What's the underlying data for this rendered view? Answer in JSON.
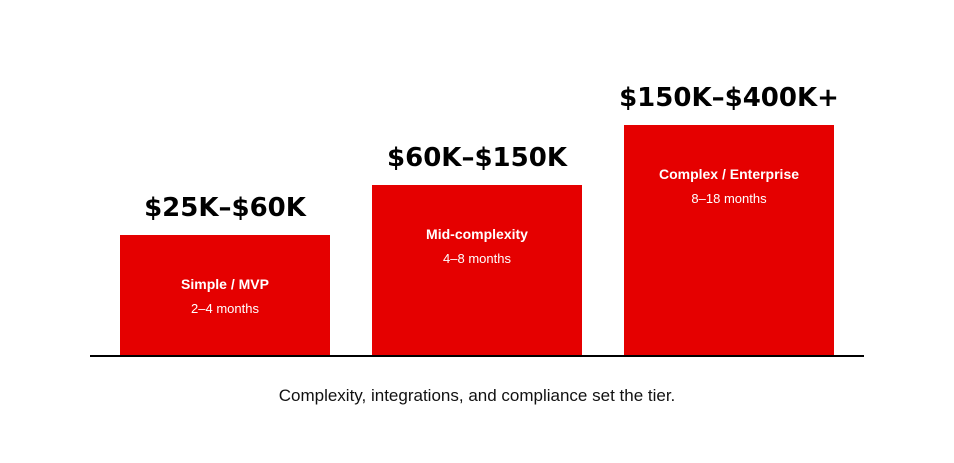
{
  "chart_data": {
    "type": "bar",
    "caption": "Complexity, integrations, and compliance set the tier.",
    "bar_color": "#e50000",
    "ylim": [
      0,
      400
    ],
    "categories": [
      "Simple / MVP",
      "Mid-complexity",
      "Complex / Enterprise"
    ],
    "values": [
      120,
      170,
      230
    ],
    "bars": [
      {
        "name": "Simple / MVP",
        "duration": "2–4 months",
        "price_label": "$25K–$60K"
      },
      {
        "name": "Mid-complexity",
        "duration": "4–8 months",
        "price_label": "$60K–$150K"
      },
      {
        "name": "Complex / Enterprise",
        "duration": "8–18 months",
        "price_label": "$150K–$400K+"
      }
    ]
  }
}
